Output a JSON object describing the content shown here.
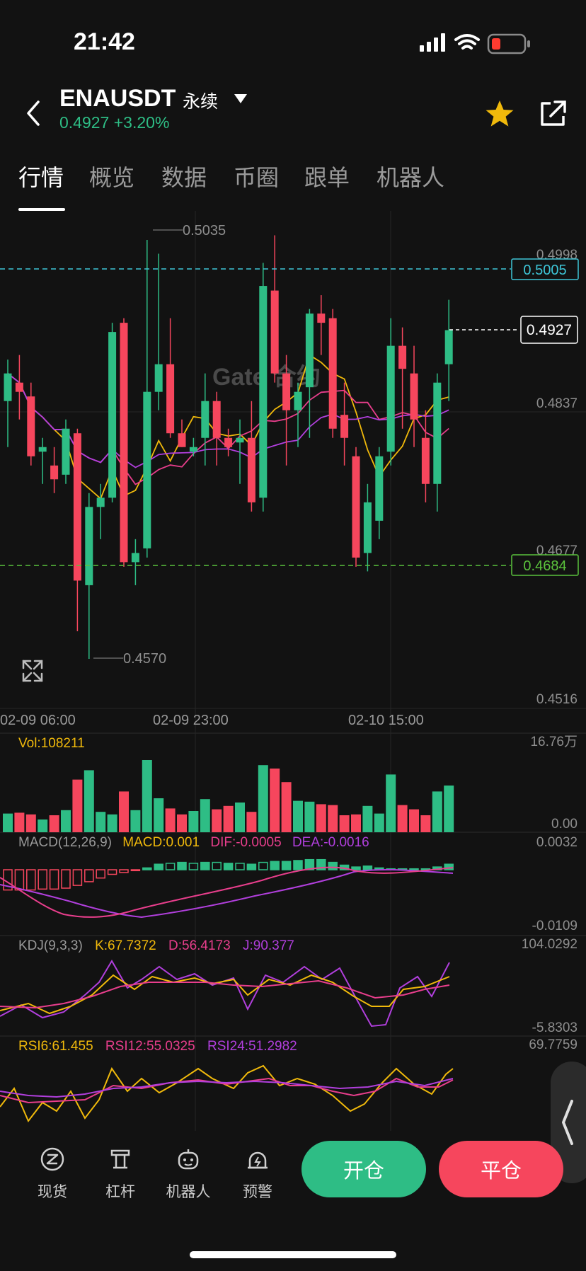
{
  "status_bar": {
    "time": "21:42"
  },
  "header": {
    "symbol": "ENAUSDT",
    "contract_type": "永续",
    "last_price": "0.4927",
    "change_percent": "+3.20%"
  },
  "tabs": [
    {
      "label": "行情",
      "active": true
    },
    {
      "label": "概览",
      "active": false
    },
    {
      "label": "数据",
      "active": false
    },
    {
      "label": "币圈",
      "active": false
    },
    {
      "label": "跟单",
      "active": false
    },
    {
      "label": "机器人",
      "active": false
    }
  ],
  "chart_data": {
    "type": "candlestick",
    "watermark": "Gate 合约",
    "price_axis_labels": [
      "0.4998",
      "0.4837",
      "0.4677",
      "0.4516"
    ],
    "time_labels": [
      "02-09 06:00",
      "02-09 23:00",
      "02-10 15:00"
    ],
    "annotations": {
      "high": "0.5035",
      "low": "0.4570"
    },
    "price_lines": [
      {
        "value": "0.5005",
        "color": "#3ec6d8",
        "style": "dashed"
      },
      {
        "value": "0.4684",
        "color": "#5bc23c",
        "style": "dashed"
      },
      {
        "value": "0.4927",
        "color": "#ffffff",
        "style": "dashed"
      }
    ],
    "volume": {
      "label": "Vol:108211",
      "max_label": "16.76万",
      "min_label": "0.00"
    },
    "macd": {
      "params": "MACD(12,26,9)",
      "macd": "MACD:0.001",
      "dif": "DIF:-0.0005",
      "dea": "DEA:-0.0016",
      "max_label": "0.0032",
      "min_label": "-0.0109"
    },
    "kdj": {
      "params": "KDJ(9,3,3)",
      "k": "K:67.7372",
      "d": "D:56.4173",
      "j": "J:90.377",
      "max_label": "104.0292",
      "min_label": "-5.8303"
    },
    "rsi": {
      "rsi6": "RSI6:61.455",
      "rsi12": "RSI12:55.0325",
      "rsi24": "RSI24:51.2982",
      "max_label": "69.7759"
    },
    "candles": [
      {
        "o": 0.485,
        "h": 0.4895,
        "l": 0.48,
        "c": 0.488
      },
      {
        "o": 0.487,
        "h": 0.49,
        "l": 0.483,
        "c": 0.486
      },
      {
        "o": 0.4855,
        "h": 0.487,
        "l": 0.478,
        "c": 0.479
      },
      {
        "o": 0.4795,
        "h": 0.481,
        "l": 0.476,
        "c": 0.48
      },
      {
        "o": 0.478,
        "h": 0.48,
        "l": 0.475,
        "c": 0.4765
      },
      {
        "o": 0.477,
        "h": 0.483,
        "l": 0.476,
        "c": 0.482
      },
      {
        "o": 0.4815,
        "h": 0.482,
        "l": 0.46,
        "c": 0.4655
      },
      {
        "o": 0.465,
        "h": 0.475,
        "l": 0.457,
        "c": 0.4735
      },
      {
        "o": 0.4735,
        "h": 0.476,
        "l": 0.47,
        "c": 0.4745
      },
      {
        "o": 0.4745,
        "h": 0.4935,
        "l": 0.474,
        "c": 0.4925
      },
      {
        "o": 0.4935,
        "h": 0.494,
        "l": 0.467,
        "c": 0.4675
      },
      {
        "o": 0.4675,
        "h": 0.47,
        "l": 0.465,
        "c": 0.4685
      },
      {
        "o": 0.469,
        "h": 0.5025,
        "l": 0.468,
        "c": 0.486
      },
      {
        "o": 0.486,
        "h": 0.501,
        "l": 0.484,
        "c": 0.489
      },
      {
        "o": 0.489,
        "h": 0.494,
        "l": 0.481,
        "c": 0.4815
      },
      {
        "o": 0.4815,
        "h": 0.483,
        "l": 0.48,
        "c": 0.48
      },
      {
        "o": 0.4795,
        "h": 0.481,
        "l": 0.479,
        "c": 0.48
      },
      {
        "o": 0.481,
        "h": 0.488,
        "l": 0.478,
        "c": 0.485
      },
      {
        "o": 0.485,
        "h": 0.486,
        "l": 0.478,
        "c": 0.481
      },
      {
        "o": 0.481,
        "h": 0.482,
        "l": 0.479,
        "c": 0.48
      },
      {
        "o": 0.4805,
        "h": 0.483,
        "l": 0.476,
        "c": 0.481
      },
      {
        "o": 0.481,
        "h": 0.485,
        "l": 0.473,
        "c": 0.474
      },
      {
        "o": 0.4745,
        "h": 0.5,
        "l": 0.473,
        "c": 0.4975
      },
      {
        "o": 0.497,
        "h": 0.503,
        "l": 0.487,
        "c": 0.488
      },
      {
        "o": 0.488,
        "h": 0.49,
        "l": 0.478,
        "c": 0.484
      },
      {
        "o": 0.484,
        "h": 0.487,
        "l": 0.48,
        "c": 0.486
      },
      {
        "o": 0.4865,
        "h": 0.495,
        "l": 0.481,
        "c": 0.4945
      },
      {
        "o": 0.4945,
        "h": 0.4965,
        "l": 0.49,
        "c": 0.4935
      },
      {
        "o": 0.494,
        "h": 0.495,
        "l": 0.481,
        "c": 0.482
      },
      {
        "o": 0.4835,
        "h": 0.487,
        "l": 0.478,
        "c": 0.481
      },
      {
        "o": 0.479,
        "h": 0.48,
        "l": 0.467,
        "c": 0.468
      },
      {
        "o": 0.4685,
        "h": 0.476,
        "l": 0.4665,
        "c": 0.474
      },
      {
        "o": 0.472,
        "h": 0.48,
        "l": 0.47,
        "c": 0.479
      },
      {
        "o": 0.4795,
        "h": 0.494,
        "l": 0.478,
        "c": 0.491
      },
      {
        "o": 0.491,
        "h": 0.493,
        "l": 0.482,
        "c": 0.4885
      },
      {
        "o": 0.488,
        "h": 0.491,
        "l": 0.48,
        "c": 0.483
      },
      {
        "o": 0.481,
        "h": 0.484,
        "l": 0.474,
        "c": 0.476
      },
      {
        "o": 0.476,
        "h": 0.488,
        "l": 0.473,
        "c": 0.487
      },
      {
        "o": 0.489,
        "h": 0.496,
        "l": 0.485,
        "c": 0.4927
      }
    ],
    "volume_values": [
      22,
      23,
      21,
      15,
      20,
      26,
      62,
      73,
      24,
      21,
      48,
      26,
      85,
      40,
      28,
      21,
      25,
      39,
      27,
      31,
      35,
      24,
      79,
      75,
      59,
      37,
      36,
      33,
      32,
      20,
      21,
      31,
      22,
      68,
      32,
      27,
      20,
      48,
      55
    ],
    "macd_values": [
      -0.0022,
      -0.0022,
      -0.0022,
      -0.0021,
      -0.0021,
      -0.002,
      -0.0017,
      -0.0013,
      -0.0009,
      -0.0005,
      -0.0003,
      -0.0001,
      0.0002,
      0.0006,
      0.0007,
      0.0008,
      0.0007,
      0.0008,
      0.0008,
      0.0007,
      0.0007,
      0.0006,
      0.0008,
      0.0009,
      0.0009,
      0.001,
      0.0011,
      0.0011,
      0.0008,
      0.0005,
      0.0003,
      0.0004,
      0.0002,
      0.0001,
      0.0001,
      0.0001,
      0.0001,
      0.0003,
      0.0006
    ]
  },
  "bottom_nav": [
    {
      "label": "现货",
      "icon": "spot-icon"
    },
    {
      "label": "杠杆",
      "icon": "leverage-icon"
    },
    {
      "label": "机器人",
      "icon": "robot-icon"
    },
    {
      "label": "预警",
      "icon": "alarm-icon"
    }
  ],
  "actions": {
    "open_label": "开仓",
    "close_label": "平仓"
  },
  "colors": {
    "up": "#2ebd85",
    "down": "#f6465d",
    "ma_short": "#f0b90b",
    "ma_mid": "#e83e8c",
    "ma_long": "#b13fdd",
    "background": "#121212"
  }
}
